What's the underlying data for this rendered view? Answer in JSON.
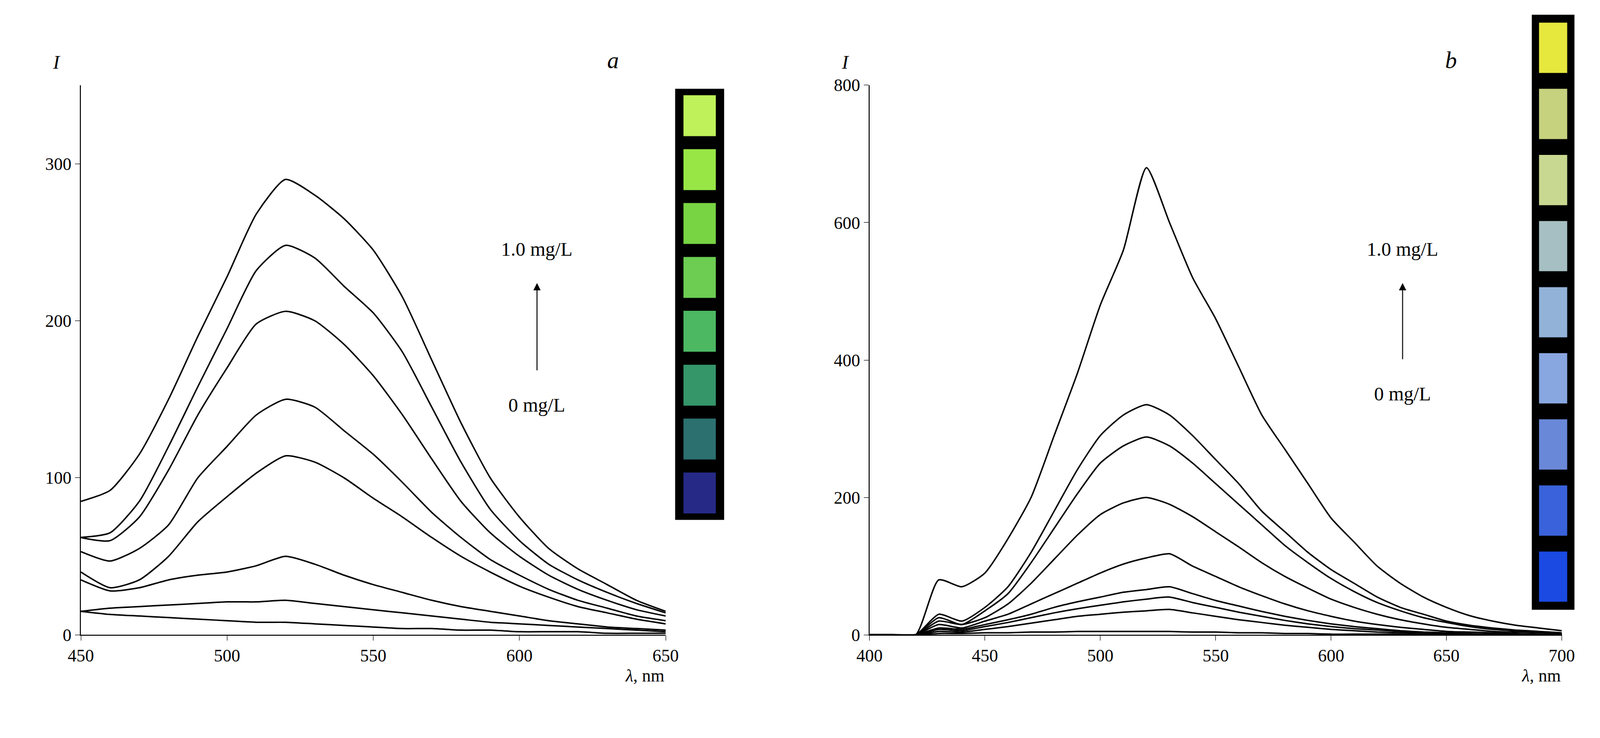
{
  "chart_data": [
    {
      "type": "line",
      "title": "a",
      "x_label": "λ, nm",
      "y_label": "I",
      "annotations": [
        "1.0 mg/L",
        "0 mg/L"
      ],
      "color": "#000000",
      "line_style": "solid",
      "grid": false,
      "x": [
        450,
        460,
        470,
        480,
        490,
        500,
        510,
        520,
        530,
        540,
        550,
        560,
        570,
        580,
        590,
        600,
        610,
        620,
        630,
        640,
        650
      ],
      "series": [
        {
          "values": [
            85,
            92,
            115,
            150,
            190,
            228,
            268,
            290,
            280,
            265,
            245,
            215,
            175,
            135,
            100,
            75,
            55,
            42,
            32,
            22,
            15
          ]
        },
        {
          "values": [
            62,
            65,
            85,
            120,
            158,
            195,
            232,
            248,
            240,
            222,
            205,
            180,
            145,
            110,
            80,
            60,
            45,
            35,
            27,
            20,
            14
          ]
        },
        {
          "values": [
            62,
            60,
            75,
            105,
            140,
            170,
            198,
            206,
            200,
            185,
            165,
            140,
            112,
            85,
            65,
            50,
            38,
            29,
            22,
            16,
            12
          ]
        },
        {
          "values": [
            53,
            47,
            55,
            70,
            100,
            120,
            140,
            150,
            145,
            130,
            115,
            97,
            78,
            62,
            48,
            38,
            29,
            22,
            17,
            12,
            9
          ]
        },
        {
          "values": [
            40,
            30,
            35,
            50,
            72,
            88,
            103,
            114,
            110,
            100,
            87,
            75,
            62,
            50,
            40,
            31,
            24,
            18,
            14,
            10,
            7
          ]
        },
        {
          "values": [
            35,
            28,
            30,
            35,
            38,
            40,
            44,
            50,
            45,
            38,
            32,
            27,
            22,
            18,
            15,
            12,
            9,
            7,
            5,
            4,
            3
          ]
        },
        {
          "values": [
            15,
            17,
            18,
            19,
            20,
            21,
            21,
            22,
            20,
            18,
            16,
            14,
            12,
            10,
            8,
            7,
            6,
            5,
            4,
            3,
            2
          ]
        },
        {
          "values": [
            15,
            13,
            12,
            11,
            10,
            9,
            8,
            8,
            7,
            6,
            5,
            4,
            4,
            3,
            3,
            2,
            2,
            2,
            1,
            1,
            1
          ]
        }
      ],
      "xlim": [
        450,
        650
      ],
      "xticks": [
        450,
        500,
        550,
        600,
        650
      ],
      "ylim": [
        0,
        350
      ],
      "yticks": [
        0,
        100,
        200,
        300
      ]
    },
    {
      "type": "line",
      "title": "b",
      "x_label": "λ, nm",
      "y_label": "I",
      "annotations": [
        "1.0 mg/L",
        "0 mg/L"
      ],
      "color": "#000000",
      "line_style": "solid",
      "grid": false,
      "x": [
        400,
        410,
        420,
        430,
        440,
        450,
        460,
        470,
        480,
        490,
        500,
        510,
        520,
        530,
        540,
        550,
        560,
        570,
        580,
        590,
        600,
        610,
        620,
        630,
        640,
        650,
        660,
        670,
        680,
        690,
        700
      ],
      "series": [
        {
          "values": [
            0,
            0,
            0,
            80,
            70,
            90,
            140,
            200,
            290,
            380,
            480,
            560,
            680,
            600,
            520,
            460,
            390,
            320,
            270,
            220,
            170,
            135,
            100,
            75,
            55,
            40,
            28,
            20,
            14,
            10,
            6
          ]
        },
        {
          "values": [
            0,
            0,
            0,
            30,
            20,
            40,
            70,
            120,
            180,
            240,
            290,
            320,
            335,
            320,
            290,
            255,
            220,
            180,
            150,
            120,
            95,
            75,
            55,
            40,
            30,
            20,
            14,
            10,
            7,
            5,
            3
          ]
        },
        {
          "values": [
            0,
            0,
            0,
            25,
            15,
            35,
            60,
            105,
            155,
            205,
            250,
            275,
            288,
            275,
            250,
            220,
            190,
            160,
            130,
            105,
            82,
            63,
            47,
            35,
            25,
            18,
            12,
            8,
            6,
            4,
            2
          ]
        },
        {
          "values": [
            0,
            0,
            0,
            20,
            15,
            25,
            45,
            75,
            110,
            145,
            175,
            192,
            200,
            190,
            172,
            150,
            128,
            105,
            85,
            68,
            52,
            40,
            30,
            22,
            16,
            11,
            8,
            5,
            4,
            3,
            2
          ]
        },
        {
          "values": [
            0,
            0,
            0,
            15,
            10,
            20,
            30,
            45,
            60,
            75,
            90,
            103,
            112,
            118,
            100,
            85,
            70,
            57,
            45,
            35,
            27,
            20,
            15,
            11,
            8,
            5,
            4,
            3,
            2,
            1,
            1
          ]
        },
        {
          "values": [
            0,
            0,
            0,
            10,
            8,
            15,
            22,
            30,
            40,
            48,
            55,
            62,
            66,
            70,
            60,
            50,
            42,
            34,
            27,
            21,
            16,
            12,
            9,
            6,
            4,
            3,
            2,
            1,
            1,
            0,
            0
          ]
        },
        {
          "values": [
            0,
            0,
            0,
            8,
            6,
            12,
            18,
            25,
            32,
            38,
            43,
            48,
            52,
            55,
            47,
            40,
            33,
            27,
            21,
            16,
            12,
            9,
            7,
            5,
            3,
            2,
            1,
            1,
            0,
            0,
            0
          ]
        },
        {
          "values": [
            0,
            0,
            0,
            5,
            4,
            8,
            12,
            17,
            22,
            27,
            30,
            33,
            35,
            37,
            32,
            27,
            22,
            18,
            14,
            11,
            8,
            6,
            4,
            3,
            2,
            1,
            1,
            0,
            0,
            0,
            0
          ]
        },
        {
          "values": [
            0,
            0,
            0,
            2,
            2,
            3,
            3,
            4,
            4,
            5,
            5,
            5,
            5,
            5,
            4,
            4,
            3,
            3,
            2,
            2,
            1,
            1,
            1,
            1,
            0,
            0,
            0,
            0,
            0,
            0,
            0
          ]
        }
      ],
      "xlim": [
        400,
        700
      ],
      "xticks": [
        400,
        450,
        500,
        550,
        600,
        650,
        700
      ],
      "ylim": [
        0,
        800
      ],
      "yticks": [
        0,
        200,
        400,
        600,
        800
      ]
    }
  ]
}
